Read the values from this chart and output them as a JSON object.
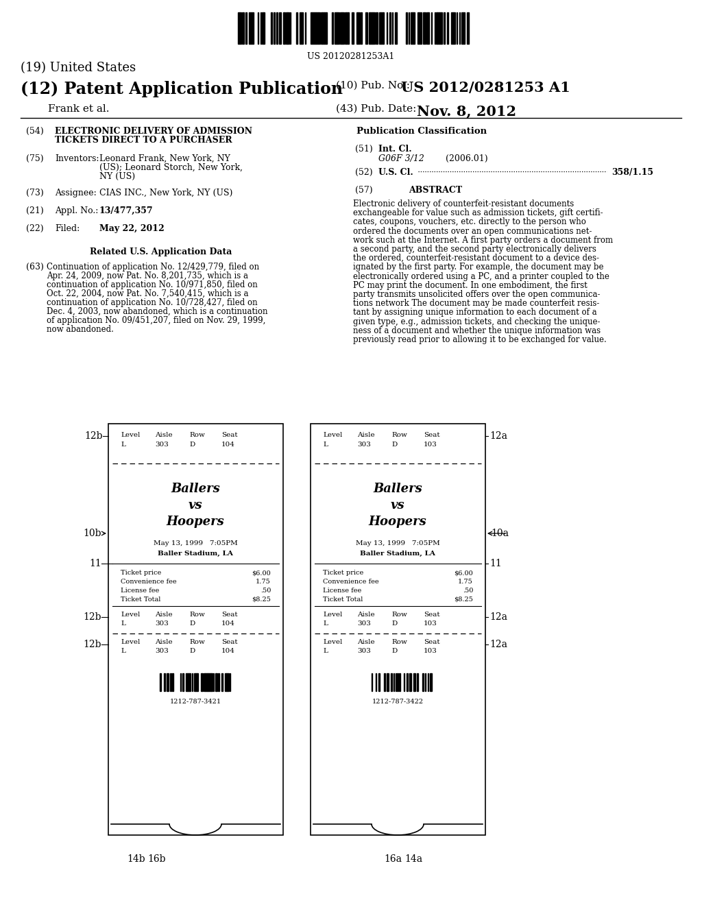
{
  "bg_color": "#ffffff",
  "barcode_number": "US 20120281253A1",
  "title_19": "(19) United States",
  "title_12": "(12) Patent Application Publication",
  "pub_no_label": "(10) Pub. No.:",
  "pub_no_val": "US 2012/0281253 A1",
  "author": "Frank et al.",
  "pub_date_label": "(43) Pub. Date:",
  "pub_date_val": "Nov. 8, 2012",
  "field_54_label": "(54)",
  "field_54_line1": "ELECTRONIC DELIVERY OF ADMISSION",
  "field_54_line2": "TICKETS DIRECT TO A PURCHASER",
  "field_75_label": "(75)",
  "field_75_key": "Inventors:",
  "field_75_line1": "Leonard Frank, New York, NY",
  "field_75_line2": "(US); Leonard Storch, New York,",
  "field_75_line3": "NY (US)",
  "field_73_label": "(73)",
  "field_73_key": "Assignee:",
  "field_73_val": "CIAS INC., New York, NY (US)",
  "field_21_label": "(21)",
  "field_21_key": "Appl. No.:",
  "field_21_val": "13/477,357",
  "field_22_label": "(22)",
  "field_22_key": "Filed:",
  "field_22_val": "May 22, 2012",
  "related_title": "Related U.S. Application Data",
  "field_63_label": "(63)",
  "field_63_lines": [
    "Continuation of application No. 12/429,779, filed on",
    "Apr. 24, 2009, now Pat. No. 8,201,735, which is a",
    "continuation of application No. 10/971,850, filed on",
    "Oct. 22, 2004, now Pat. No. 7,540,415, which is a",
    "continuation of application No. 10/728,427, filed on",
    "Dec. 4, 2003, now abandoned, which is a continuation",
    "of application No. 09/451,207, filed on Nov. 29, 1999,",
    "now abandoned."
  ],
  "pub_class_title": "Publication Classification",
  "field_51_label": "(51)",
  "field_51_key": "Int. Cl.",
  "field_51_val": "G06F 3/12",
  "field_51_year": "(2006.01)",
  "field_52_label": "(52)",
  "field_52_key": "U.S. Cl.",
  "field_52_val": "358/1.15",
  "field_57_label": "(57)",
  "field_57_key": "ABSTRACT",
  "abstract_lines": [
    "Electronic delivery of counterfeit-resistant documents",
    "exchangeable for value such as admission tickets, gift certifi-",
    "cates, coupons, vouchers, etc. directly to the person who",
    "ordered the documents over an open communications net-",
    "work such at the Internet. A first party orders a document from",
    "a second party, and the second party electronically delivers",
    "the ordered, counterfeit-resistant document to a device des-",
    "ignated by the first party. For example, the document may be",
    "electronically ordered using a PC, and a printer coupled to the",
    "PC may print the document. In one embodiment, the first",
    "party transmits unsolicited offers over the open communica-",
    "tions network The document may be made counterfeit resis-",
    "tant by assigning unique information to each document of a",
    "given type, e.g., admission tickets, and checking the unique-",
    "ness of a document and whether the unique information was",
    "previously read prior to allowing it to be exchanged for value."
  ],
  "ticket_left": {
    "seat_top": {
      "level": "L",
      "aisle": "303",
      "row": "D",
      "seat": "104"
    },
    "event_lines": [
      "Ballers",
      "vs",
      "Hoopers"
    ],
    "date": "May 13, 1999   7:05PM",
    "venue": "Baller Stadium, LA",
    "ticket_price": "$6.00",
    "convenience_fee": "1.75",
    "license_fee": ".50",
    "ticket_total": "$8.25",
    "seat_mid": {
      "level": "L",
      "aisle": "303",
      "row": "D",
      "seat": "104"
    },
    "seat_bot": {
      "level": "L",
      "aisle": "303",
      "row": "D",
      "seat": "104"
    },
    "barcode_num": "1212-787-3421",
    "label_10": "10b",
    "label_11": "11",
    "label_12_top": "12b",
    "label_12_mid": "12b",
    "label_12_bot": "12b",
    "label_14": "14b",
    "label_16": "16b"
  },
  "ticket_right": {
    "seat_top": {
      "level": "L",
      "aisle": "303",
      "row": "D",
      "seat": "103"
    },
    "event_lines": [
      "Ballers",
      "vs",
      "Hoopers"
    ],
    "date": "May 13, 1999   7:05PM",
    "venue": "Baller Stadium, LA",
    "ticket_price": "$6.00",
    "convenience_fee": "1.75",
    "license_fee": ".50",
    "ticket_total": "$8.25",
    "seat_mid": {
      "level": "L",
      "aisle": "303",
      "row": "D",
      "seat": "103"
    },
    "seat_bot": {
      "level": "L",
      "aisle": "303",
      "row": "D",
      "seat": "103"
    },
    "barcode_num": "1212-787-3422",
    "label_10": "10a",
    "label_11": "11",
    "label_12_top": "12a",
    "label_12_mid": "12a",
    "label_12_bot": "12a",
    "label_14": "14a",
    "label_16": "16a"
  }
}
